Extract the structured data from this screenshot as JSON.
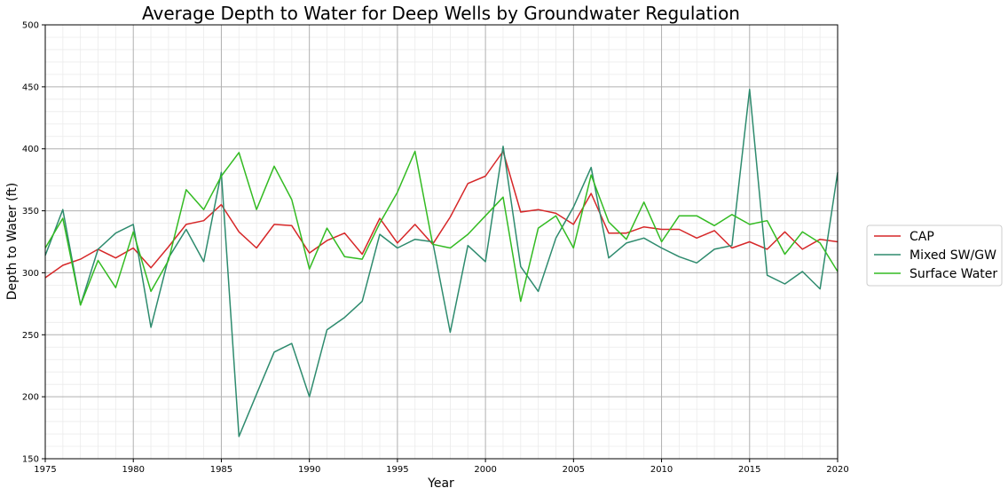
{
  "chart_data": {
    "type": "line",
    "title": "Average Depth to Water for Deep Wells by Groundwater Regulation",
    "xlabel": "Year",
    "ylabel": "Depth to Water (ft)",
    "xlim": [
      1975,
      2020
    ],
    "ylim": [
      150,
      500
    ],
    "xticks": [
      1975,
      1980,
      1985,
      1990,
      1995,
      2000,
      2005,
      2010,
      2015,
      2020
    ],
    "yticks": [
      150,
      200,
      250,
      300,
      350,
      400,
      450,
      500
    ],
    "grid": true,
    "minor_grid": true,
    "legend_position": "right-outside",
    "x": [
      1975,
      1976,
      1977,
      1978,
      1979,
      1980,
      1981,
      1982,
      1983,
      1984,
      1985,
      1986,
      1987,
      1988,
      1989,
      1990,
      1991,
      1992,
      1993,
      1994,
      1995,
      1996,
      1997,
      1998,
      1999,
      2000,
      2001,
      2002,
      2003,
      2004,
      2005,
      2006,
      2007,
      2008,
      2009,
      2010,
      2011,
      2012,
      2013,
      2014,
      2015,
      2016,
      2017,
      2018,
      2019,
      2020
    ],
    "series": [
      {
        "name": "CAP",
        "color": "#d62728",
        "values": [
          296,
          306,
          311,
          319,
          312,
          320,
          304,
          321,
          339,
          342,
          355,
          333,
          320,
          339,
          338,
          316,
          326,
          332,
          315,
          344,
          324,
          339,
          323,
          345,
          372,
          378,
          398,
          349,
          351,
          348,
          339,
          364,
          332,
          332,
          337,
          335,
          335,
          328,
          334,
          320,
          325,
          319,
          333,
          319,
          327,
          325
        ]
      },
      {
        "name": "Mixed SW/GW",
        "color": "#2e8b6e",
        "values": [
          314,
          351,
          274,
          319,
          332,
          339,
          256,
          312,
          335,
          309,
          381,
          168,
          202,
          236,
          243,
          200,
          254,
          264,
          277,
          331,
          320,
          327,
          325,
          252,
          322,
          309,
          402,
          305,
          285,
          328,
          353,
          385,
          312,
          324,
          328,
          320,
          313,
          308,
          319,
          322,
          448,
          298,
          291,
          301,
          287,
          381
        ]
      },
      {
        "name": "Surface Water",
        "color": "#33bb22",
        "values": [
          320,
          344,
          274,
          310,
          288,
          333,
          285,
          310,
          367,
          351,
          378,
          397,
          351,
          386,
          359,
          303,
          336,
          313,
          311,
          340,
          365,
          398,
          323,
          320,
          331,
          346,
          361,
          277,
          336,
          346,
          320,
          379,
          341,
          327,
          357,
          325,
          346,
          346,
          338,
          347,
          339,
          342,
          315,
          333,
          324,
          301
        ]
      }
    ]
  }
}
